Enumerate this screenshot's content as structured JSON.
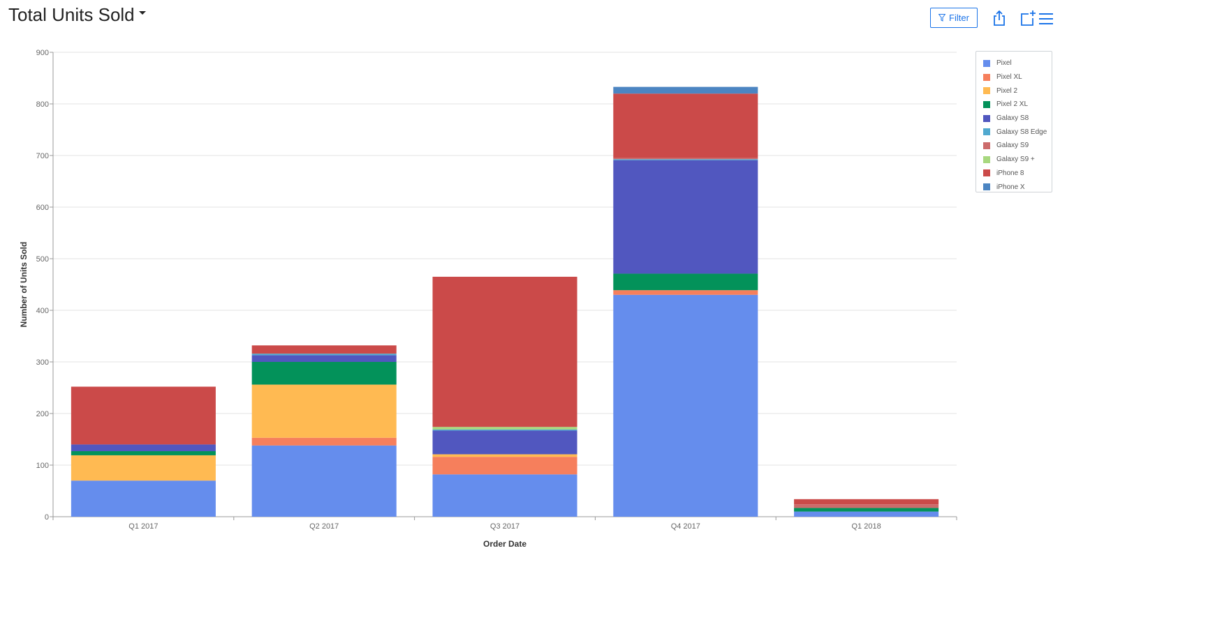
{
  "header": {
    "title": "Total Units Sold",
    "filter_label": "Filter"
  },
  "icons": {
    "title_dropdown": "caret-down-icon",
    "filter": "filter-icon",
    "share": "share-icon",
    "add_to_dashboard": "add-window-icon",
    "menu": "hamburger-menu-icon"
  },
  "colors": {
    "accent": "#1a73e8"
  },
  "chart_data": {
    "type": "bar",
    "stacked": true,
    "xlabel": "Order Date",
    "ylabel": "Number of Units Sold",
    "ylim": [
      0,
      900
    ],
    "yticks": [
      0,
      100,
      200,
      300,
      400,
      500,
      600,
      700,
      800,
      900
    ],
    "grid": true,
    "legend_position": "top-right",
    "categories": [
      "Q1 2017",
      "Q2 2017",
      "Q3 2017",
      "Q4 2017",
      "Q1 2018"
    ],
    "series": [
      {
        "name": "Pixel",
        "color": "#658ded",
        "values": [
          70,
          138,
          82,
          430,
          10
        ]
      },
      {
        "name": "Pixel XL",
        "color": "#f67f5c",
        "values": [
          0,
          15,
          34,
          9,
          0
        ]
      },
      {
        "name": "Pixel 2",
        "color": "#ffba52",
        "values": [
          49,
          103,
          5,
          0,
          0
        ]
      },
      {
        "name": "Pixel 2 XL",
        "color": "#03925a",
        "values": [
          8,
          44,
          0,
          32,
          7
        ]
      },
      {
        "name": "Galaxy S8",
        "color": "#5157bf",
        "values": [
          13,
          13,
          46,
          220,
          0
        ]
      },
      {
        "name": "Galaxy S8 Edge",
        "color": "#50a9cf",
        "values": [
          0,
          3,
          2,
          2,
          0
        ]
      },
      {
        "name": "Galaxy S9",
        "color": "#cc6b6b",
        "values": [
          0,
          0,
          0,
          2,
          7
        ]
      },
      {
        "name": "Galaxy S9 +",
        "color": "#a8d87f",
        "values": [
          0,
          0,
          5,
          0,
          0
        ]
      },
      {
        "name": "iPhone 8",
        "color": "#cb4a49",
        "values": [
          112,
          16,
          291,
          125,
          10
        ]
      },
      {
        "name": "iPhone X",
        "color": "#4c85c2",
        "values": [
          0,
          0,
          0,
          13,
          0
        ]
      }
    ]
  }
}
